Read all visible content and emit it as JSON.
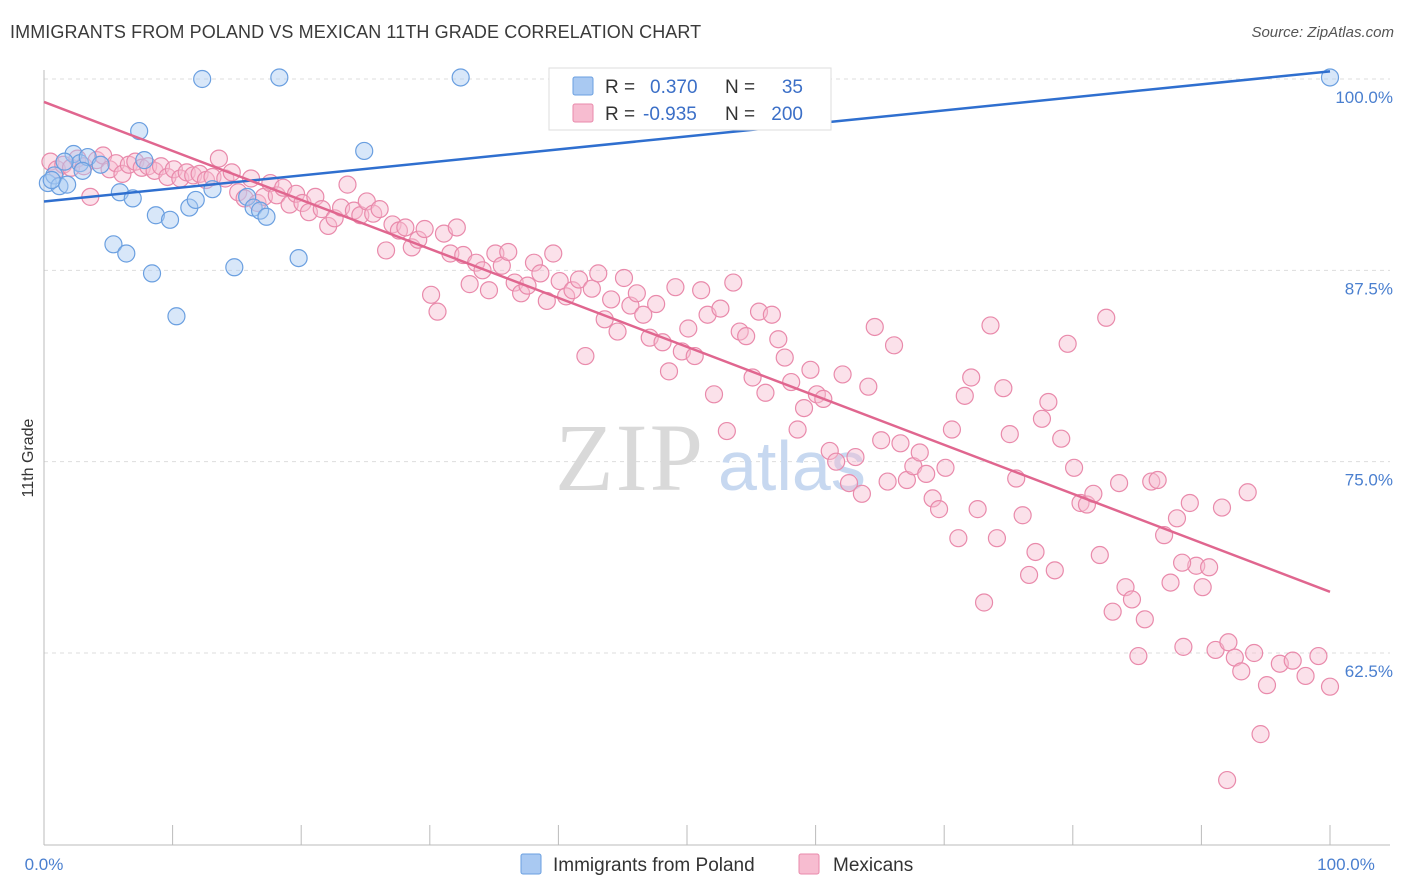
{
  "title": "IMMIGRANTS FROM POLAND VS MEXICAN 11TH GRADE CORRELATION CHART",
  "source": "Source: ZipAtlas.com",
  "watermark": {
    "zip": "ZIP",
    "atlas": "atlas"
  },
  "colors": {
    "poland_fill": "#a9c9f2",
    "poland_stroke": "#6a9fe0",
    "poland_line": "#2f6fcf",
    "mexican_fill": "#f7bcd0",
    "mexican_stroke": "#e98aab",
    "mexican_line": "#e0668f",
    "grid": "#dddddd",
    "tick_text": "#4a7fcf"
  },
  "legend": {
    "row1": {
      "r_label": "R =",
      "r_value": "0.370",
      "n_label": "N =",
      "n_value": "35"
    },
    "row2": {
      "r_label": "R =",
      "r_value": "-0.935",
      "n_label": "N =",
      "n_value": "200"
    }
  },
  "chart_data": {
    "type": "scatter",
    "ylabel": "11th Grade",
    "xlim": [
      0,
      100
    ],
    "ylim": [
      51.5,
      101.5
    ],
    "y_ticks": [
      {
        "value": 100.0,
        "label": "100.0%"
      },
      {
        "value": 87.5,
        "label": "87.5%"
      },
      {
        "value": 75.0,
        "label": "75.0%"
      },
      {
        "value": 62.5,
        "label": "62.5%"
      }
    ],
    "x_tick_labels": {
      "left": "0.0%",
      "right": "100.0%"
    },
    "series": [
      {
        "name": "Immigrants from Poland",
        "trend": [
          [
            0,
            92.0
          ],
          [
            100,
            100.5
          ]
        ],
        "points": [
          [
            0.3,
            93.2
          ],
          [
            0.8,
            93.7
          ],
          [
            1.2,
            93.0
          ],
          [
            1.8,
            93.1
          ],
          [
            2.3,
            95.1
          ],
          [
            2.8,
            94.5
          ],
          [
            3.4,
            94.9
          ],
          [
            4.4,
            94.4
          ],
          [
            5.4,
            89.2
          ],
          [
            5.9,
            92.6
          ],
          [
            6.4,
            88.6
          ],
          [
            6.9,
            92.2
          ],
          [
            7.4,
            96.6
          ],
          [
            7.8,
            94.7
          ],
          [
            8.4,
            87.3
          ],
          [
            8.7,
            91.1
          ],
          [
            9.8,
            90.8
          ],
          [
            10.3,
            84.5
          ],
          [
            11.3,
            91.6
          ],
          [
            11.8,
            92.1
          ],
          [
            12.3,
            100.0
          ],
          [
            13.1,
            92.8
          ],
          [
            14.8,
            87.7
          ],
          [
            15.8,
            92.3
          ],
          [
            16.3,
            91.6
          ],
          [
            16.8,
            91.4
          ],
          [
            17.3,
            91.0
          ],
          [
            18.3,
            100.1
          ],
          [
            19.8,
            88.3
          ],
          [
            24.9,
            95.3
          ],
          [
            32.4,
            100.1
          ],
          [
            100.0,
            100.1
          ],
          [
            1.6,
            94.6
          ],
          [
            0.6,
            93.4
          ],
          [
            3.0,
            94.0
          ]
        ]
      },
      {
        "name": "Mexicans",
        "trend": [
          [
            0,
            98.5
          ],
          [
            100,
            66.5
          ]
        ],
        "points": [
          [
            0.5,
            94.6
          ],
          [
            1.0,
            94.1
          ],
          [
            1.5,
            94.4
          ],
          [
            2.1,
            94.2
          ],
          [
            2.6,
            94.8
          ],
          [
            3.1,
            94.3
          ],
          [
            3.6,
            92.3
          ],
          [
            4.1,
            94.7
          ],
          [
            4.6,
            95.0
          ],
          [
            5.1,
            94.1
          ],
          [
            5.6,
            94.5
          ],
          [
            6.1,
            93.8
          ],
          [
            6.6,
            94.4
          ],
          [
            7.1,
            94.6
          ],
          [
            7.6,
            94.2
          ],
          [
            8.1,
            94.3
          ],
          [
            8.6,
            94.0
          ],
          [
            9.1,
            94.3
          ],
          [
            9.6,
            93.6
          ],
          [
            10.1,
            94.1
          ],
          [
            10.6,
            93.5
          ],
          [
            11.1,
            93.9
          ],
          [
            11.6,
            93.7
          ],
          [
            12.1,
            93.8
          ],
          [
            12.6,
            93.4
          ],
          [
            13.1,
            93.6
          ],
          [
            13.6,
            94.8
          ],
          [
            14.1,
            93.5
          ],
          [
            14.6,
            93.9
          ],
          [
            15.1,
            92.6
          ],
          [
            15.6,
            92.2
          ],
          [
            16.1,
            93.5
          ],
          [
            16.6,
            91.9
          ],
          [
            17.1,
            92.3
          ],
          [
            17.6,
            93.2
          ],
          [
            18.1,
            92.4
          ],
          [
            18.6,
            92.9
          ],
          [
            19.1,
            91.8
          ],
          [
            19.6,
            92.5
          ],
          [
            20.1,
            91.9
          ],
          [
            20.6,
            91.3
          ],
          [
            21.1,
            92.3
          ],
          [
            21.6,
            91.5
          ],
          [
            22.1,
            90.4
          ],
          [
            22.6,
            90.9
          ],
          [
            23.1,
            91.6
          ],
          [
            23.6,
            93.1
          ],
          [
            24.1,
            91.4
          ],
          [
            24.6,
            91.1
          ],
          [
            25.1,
            92.0
          ],
          [
            25.6,
            91.2
          ],
          [
            26.1,
            91.5
          ],
          [
            26.6,
            88.8
          ],
          [
            27.1,
            90.5
          ],
          [
            27.6,
            90.1
          ],
          [
            28.1,
            90.3
          ],
          [
            28.6,
            89.0
          ],
          [
            29.1,
            89.5
          ],
          [
            29.6,
            90.2
          ],
          [
            30.1,
            85.9
          ],
          [
            30.6,
            84.8
          ],
          [
            31.1,
            89.9
          ],
          [
            31.6,
            88.6
          ],
          [
            32.1,
            90.3
          ],
          [
            32.6,
            88.5
          ],
          [
            33.1,
            86.6
          ],
          [
            33.6,
            88.0
          ],
          [
            34.1,
            87.5
          ],
          [
            34.6,
            86.2
          ],
          [
            35.1,
            88.6
          ],
          [
            35.6,
            87.8
          ],
          [
            36.1,
            88.7
          ],
          [
            36.6,
            86.7
          ],
          [
            37.1,
            86.0
          ],
          [
            37.6,
            86.5
          ],
          [
            38.1,
            88.0
          ],
          [
            38.6,
            87.3
          ],
          [
            39.1,
            85.5
          ],
          [
            39.6,
            88.6
          ],
          [
            40.1,
            86.8
          ],
          [
            40.6,
            85.8
          ],
          [
            41.1,
            86.2
          ],
          [
            41.6,
            86.9
          ],
          [
            42.1,
            81.9
          ],
          [
            42.6,
            86.3
          ],
          [
            43.1,
            87.3
          ],
          [
            43.6,
            84.3
          ],
          [
            44.1,
            85.6
          ],
          [
            44.6,
            83.5
          ],
          [
            45.1,
            87.0
          ],
          [
            45.6,
            85.2
          ],
          [
            46.1,
            86.0
          ],
          [
            46.6,
            84.6
          ],
          [
            47.1,
            83.1
          ],
          [
            47.6,
            85.3
          ],
          [
            48.1,
            82.8
          ],
          [
            48.6,
            80.9
          ],
          [
            49.1,
            86.4
          ],
          [
            49.6,
            82.2
          ],
          [
            50.1,
            83.7
          ],
          [
            50.6,
            81.9
          ],
          [
            51.1,
            86.2
          ],
          [
            51.6,
            84.6
          ],
          [
            52.1,
            79.4
          ],
          [
            52.6,
            85.0
          ],
          [
            53.1,
            77.0
          ],
          [
            53.6,
            86.7
          ],
          [
            54.1,
            83.5
          ],
          [
            54.6,
            83.2
          ],
          [
            55.1,
            80.5
          ],
          [
            55.6,
            84.8
          ],
          [
            56.1,
            79.5
          ],
          [
            56.6,
            84.6
          ],
          [
            57.1,
            83.0
          ],
          [
            57.6,
            81.8
          ],
          [
            58.1,
            80.2
          ],
          [
            58.6,
            77.1
          ],
          [
            59.1,
            78.5
          ],
          [
            59.6,
            81.0
          ],
          [
            60.1,
            79.4
          ],
          [
            60.6,
            79.1
          ],
          [
            61.1,
            75.7
          ],
          [
            61.6,
            75.0
          ],
          [
            62.1,
            80.7
          ],
          [
            62.6,
            73.6
          ],
          [
            63.1,
            75.3
          ],
          [
            63.6,
            72.9
          ],
          [
            64.1,
            79.9
          ],
          [
            64.6,
            83.8
          ],
          [
            65.1,
            76.4
          ],
          [
            65.6,
            73.7
          ],
          [
            66.1,
            82.6
          ],
          [
            66.6,
            76.2
          ],
          [
            67.1,
            73.8
          ],
          [
            67.6,
            74.7
          ],
          [
            68.1,
            75.6
          ],
          [
            68.6,
            74.2
          ],
          [
            69.1,
            72.6
          ],
          [
            69.6,
            71.9
          ],
          [
            70.1,
            74.6
          ],
          [
            70.6,
            77.1
          ],
          [
            71.1,
            70.0
          ],
          [
            71.6,
            79.3
          ],
          [
            72.1,
            80.5
          ],
          [
            72.6,
            71.9
          ],
          [
            73.1,
            65.8
          ],
          [
            73.6,
            83.9
          ],
          [
            74.1,
            70.0
          ],
          [
            74.6,
            79.8
          ],
          [
            75.1,
            76.8
          ],
          [
            75.6,
            73.9
          ],
          [
            76.1,
            71.5
          ],
          [
            76.6,
            67.6
          ],
          [
            77.1,
            69.1
          ],
          [
            77.6,
            77.8
          ],
          [
            78.1,
            78.9
          ],
          [
            78.6,
            67.9
          ],
          [
            79.1,
            76.5
          ],
          [
            79.6,
            82.7
          ],
          [
            80.1,
            74.6
          ],
          [
            80.6,
            72.3
          ],
          [
            81.1,
            72.2
          ],
          [
            81.6,
            72.9
          ],
          [
            82.1,
            68.9
          ],
          [
            82.6,
            84.4
          ],
          [
            83.1,
            65.2
          ],
          [
            83.6,
            73.6
          ],
          [
            84.1,
            66.8
          ],
          [
            84.6,
            66.0
          ],
          [
            85.1,
            62.3
          ],
          [
            85.6,
            64.7
          ],
          [
            86.1,
            73.7
          ],
          [
            86.6,
            73.8
          ],
          [
            87.1,
            70.2
          ],
          [
            87.6,
            67.1
          ],
          [
            88.1,
            71.3
          ],
          [
            88.6,
            62.9
          ],
          [
            89.1,
            72.3
          ],
          [
            89.6,
            68.2
          ],
          [
            90.1,
            66.8
          ],
          [
            90.6,
            68.1
          ],
          [
            91.1,
            62.7
          ],
          [
            91.6,
            72.0
          ],
          [
            92.1,
            63.2
          ],
          [
            92.6,
            62.2
          ],
          [
            93.1,
            61.3
          ],
          [
            93.6,
            73.0
          ],
          [
            94.1,
            62.5
          ],
          [
            94.6,
            57.2
          ],
          [
            95.1,
            60.4
          ],
          [
            96.1,
            61.8
          ],
          [
            97.1,
            62.0
          ],
          [
            98.1,
            61.0
          ],
          [
            99.1,
            62.3
          ],
          [
            100.0,
            60.3
          ],
          [
            92.0,
            54.2
          ],
          [
            88.5,
            68.4
          ]
        ]
      }
    ],
    "legend_placement": "top-center"
  }
}
